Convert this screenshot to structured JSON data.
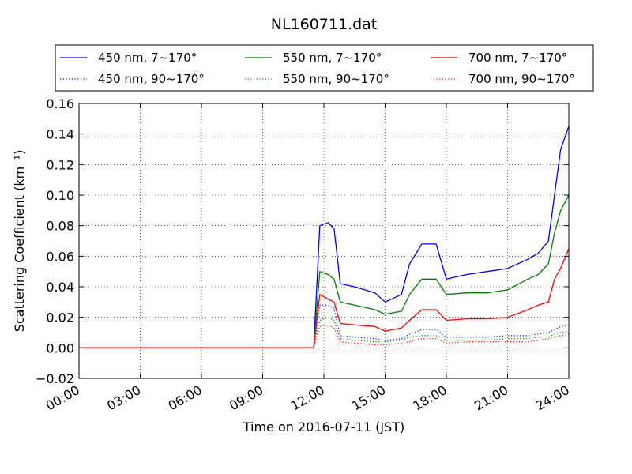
{
  "chart_data": {
    "type": "line",
    "title": "NL160711.dat",
    "xlabel": "Time on 2016-07-11 (JST)",
    "ylabel": "Scattering Coefficient (km⁻¹)",
    "xlim": [
      0,
      24
    ],
    "ylim": [
      -0.02,
      0.16
    ],
    "x_ticks": [
      "00:00",
      "03:00",
      "06:00",
      "09:00",
      "12:00",
      "15:00",
      "18:00",
      "21:00",
      "24:00"
    ],
    "y_ticks": [
      "−0.02",
      "0.00",
      "0.02",
      "0.04",
      "0.06",
      "0.08",
      "0.10",
      "0.12",
      "0.14",
      "0.16"
    ],
    "grid": true,
    "legend_position": "top",
    "series": [
      {
        "name": "450 nm, 7∼170°",
        "color": "#0000ff",
        "style": "solid",
        "x": [
          0,
          11.5,
          11.8,
          12.2,
          12.5,
          12.8,
          13.5,
          14.5,
          15.0,
          15.8,
          16.2,
          16.8,
          17.2,
          17.5,
          18.0,
          19.0,
          20.0,
          21.0,
          22.0,
          22.5,
          23.0,
          23.3,
          23.6,
          24.0
        ],
        "y": [
          0,
          0,
          0.08,
          0.082,
          0.078,
          0.042,
          0.04,
          0.036,
          0.03,
          0.035,
          0.055,
          0.068,
          0.068,
          0.068,
          0.045,
          0.048,
          0.05,
          0.052,
          0.058,
          0.062,
          0.07,
          0.1,
          0.13,
          0.145
        ]
      },
      {
        "name": "550 nm, 7∼170°",
        "color": "#008000",
        "style": "solid",
        "x": [
          0,
          11.5,
          11.8,
          12.2,
          12.5,
          12.8,
          13.5,
          14.5,
          15.0,
          15.8,
          16.2,
          16.8,
          17.2,
          17.5,
          18.0,
          19.0,
          20.0,
          21.0,
          22.0,
          22.5,
          23.0,
          23.3,
          23.6,
          24.0
        ],
        "y": [
          0,
          0,
          0.05,
          0.048,
          0.045,
          0.03,
          0.028,
          0.025,
          0.022,
          0.024,
          0.035,
          0.045,
          0.045,
          0.045,
          0.035,
          0.036,
          0.036,
          0.038,
          0.045,
          0.048,
          0.055,
          0.075,
          0.09,
          0.1
        ]
      },
      {
        "name": "700 nm, 7∼170°",
        "color": "#ff0000",
        "style": "solid",
        "x": [
          0,
          11.5,
          11.8,
          12.2,
          12.5,
          12.8,
          13.5,
          14.5,
          15.0,
          15.8,
          16.2,
          16.8,
          17.2,
          17.5,
          18.0,
          19.0,
          20.0,
          21.0,
          22.0,
          22.5,
          23.0,
          23.3,
          23.6,
          24.0
        ],
        "y": [
          0,
          0,
          0.035,
          0.032,
          0.03,
          0.016,
          0.015,
          0.014,
          0.011,
          0.013,
          0.018,
          0.025,
          0.025,
          0.025,
          0.018,
          0.019,
          0.019,
          0.02,
          0.025,
          0.028,
          0.03,
          0.045,
          0.052,
          0.065
        ]
      },
      {
        "name": "450 nm, 90∼170°",
        "color": "#0000ff",
        "style": "dotted",
        "x": [
          0,
          11.5,
          11.8,
          12.2,
          12.5,
          12.8,
          13.5,
          14.5,
          15.0,
          15.8,
          16.2,
          16.8,
          17.2,
          17.5,
          18.0,
          19.0,
          20.0,
          21.0,
          22.0,
          22.5,
          23.0,
          23.3,
          23.6,
          24.0
        ],
        "y": [
          0,
          0,
          0.028,
          0.028,
          0.026,
          0.008,
          0.007,
          0.006,
          0.005,
          0.006,
          0.009,
          0.012,
          0.012,
          0.012,
          0.007,
          0.007,
          0.007,
          0.008,
          0.008,
          0.009,
          0.01,
          0.012,
          0.014,
          0.015
        ]
      },
      {
        "name": "550 nm, 90∼170°",
        "color": "#008000",
        "style": "dotted",
        "x": [
          0,
          11.5,
          11.8,
          12.2,
          12.5,
          12.8,
          13.5,
          14.5,
          15.0,
          15.8,
          16.2,
          16.8,
          17.2,
          17.5,
          18.0,
          19.0,
          20.0,
          21.0,
          22.0,
          22.5,
          23.0,
          23.3,
          23.6,
          24.0
        ],
        "y": [
          0,
          0,
          0.018,
          0.02,
          0.018,
          0.006,
          0.005,
          0.004,
          0.004,
          0.005,
          0.007,
          0.008,
          0.008,
          0.008,
          0.005,
          0.005,
          0.005,
          0.006,
          0.006,
          0.007,
          0.007,
          0.009,
          0.01,
          0.011
        ]
      },
      {
        "name": "700 nm, 90∼170°",
        "color": "#ff0000",
        "style": "dotted",
        "x": [
          0,
          11.5,
          11.8,
          12.2,
          12.5,
          12.8,
          13.5,
          14.5,
          15.0,
          15.8,
          16.2,
          16.8,
          17.2,
          17.5,
          18.0,
          19.0,
          20.0,
          21.0,
          22.0,
          22.5,
          23.0,
          23.3,
          23.6,
          24.0
        ],
        "y": [
          0,
          0,
          0.014,
          0.015,
          0.013,
          0.004,
          0.003,
          0.002,
          0.002,
          0.003,
          0.004,
          0.006,
          0.006,
          0.006,
          0.003,
          0.004,
          0.004,
          0.004,
          0.004,
          0.005,
          0.006,
          0.007,
          0.008,
          0.009
        ]
      }
    ]
  }
}
